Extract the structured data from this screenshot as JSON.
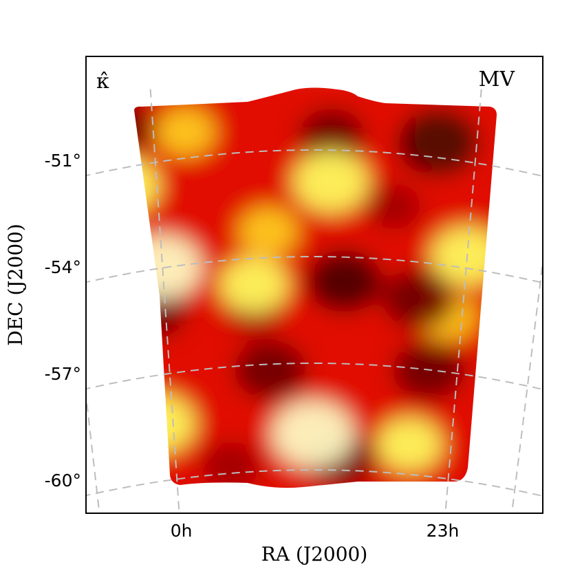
{
  "chart_data": {
    "type": "heatmap",
    "map_label": "κ̂",
    "estimator_label": "MV",
    "xlabel": "RA (J2000)",
    "ylabel": "DEC (J2000)",
    "x_ticks": [
      "0h",
      "23h"
    ],
    "y_ticks": [
      "-51°",
      "-54°",
      "-57°",
      "-60°"
    ],
    "grid": true,
    "grid_style": "dashed gray",
    "colormap": "hot",
    "colors": {
      "dark": "#6e0000",
      "red": "#e01000",
      "orange": "#ff8a00",
      "yellow": "#ffff60",
      "grid": "#bdbdbd"
    },
    "blobs": [
      {
        "ra": -0.1,
        "dec": -51.7,
        "value": 0.8
      },
      {
        "ra": 0.55,
        "dec": -51.6,
        "value": 1.0
      },
      {
        "ra": 0.0,
        "dec": -54.0,
        "value": 1.1
      },
      {
        "ra": 0.3,
        "dec": -54.5,
        "value": 0.8
      },
      {
        "ra": -0.05,
        "dec": -58.4,
        "value": 0.9
      },
      {
        "ra": 0.5,
        "dec": -58.7,
        "value": 1.2
      },
      {
        "ra": 0.35,
        "dec": -53.0,
        "value": 0.5
      },
      {
        "ra": 1.0,
        "dec": -53.7,
        "value": 0.9
      },
      {
        "ra": 0.85,
        "dec": -59.0,
        "value": 0.7
      },
      {
        "ra": 0.95,
        "dec": -55.4,
        "value": 0.5
      },
      {
        "ra": 0.1,
        "dec": -50.2,
        "value": 0.5
      },
      {
        "ra": 0.9,
        "dec": -50.4,
        "value": 0.5
      },
      {
        "ra": -0.1,
        "dec": -50.1,
        "value": -0.7
      },
      {
        "ra": 0.55,
        "dec": -50.3,
        "value": -0.7
      },
      {
        "ra": 0.88,
        "dec": -50.5,
        "value": -1.2
      },
      {
        "ra": 0.6,
        "dec": -54.4,
        "value": -1.0
      },
      {
        "ra": 0.85,
        "dec": -54.9,
        "value": -0.9
      },
      {
        "ra": -0.05,
        "dec": -55.2,
        "value": -0.9
      },
      {
        "ra": 0.35,
        "dec": -56.9,
        "value": -0.9
      },
      {
        "ra": 0.9,
        "dec": -56.9,
        "value": -0.9
      },
      {
        "ra": 0.6,
        "dec": -59.4,
        "value": -0.8
      },
      {
        "ra": 0.2,
        "dec": -59.6,
        "value": -0.5
      },
      {
        "ra": 0.3,
        "dec": -55.3,
        "value": -0.3
      },
      {
        "ra": 0.75,
        "dec": -52.3,
        "value": -0.4
      }
    ]
  }
}
